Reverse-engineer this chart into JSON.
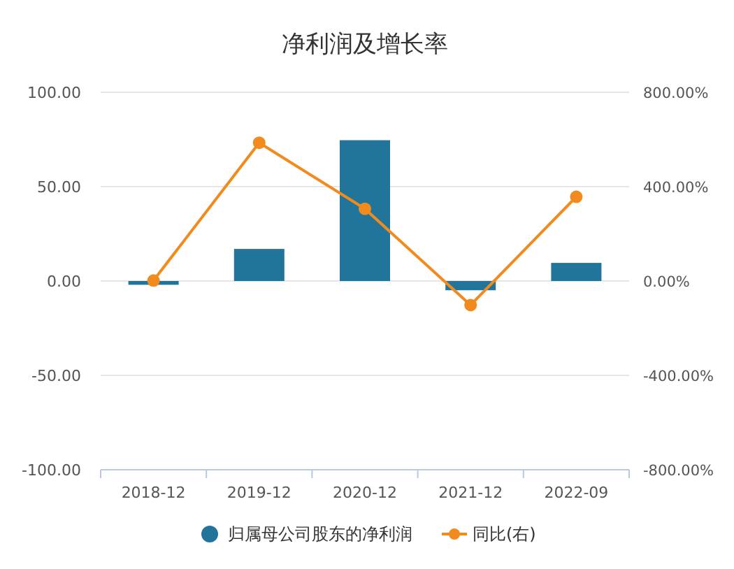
{
  "chart_data": {
    "type": "bar",
    "title": "净利润及增长率",
    "categories": [
      "2018-12",
      "2019-12",
      "2020-12",
      "2021-12",
      "2022-09"
    ],
    "series": [
      {
        "name": "归属母公司股东的净利润",
        "color": "#21759b",
        "values": [
          -2,
          17,
          74.6,
          -4.9,
          9.6
        ]
      },
      {
        "name": "同比(右)",
        "type": "line",
        "axis": "y2",
        "color": "#f28b1e",
        "marker": "circle",
        "values": [
          2,
          586,
          306,
          -102,
          357
        ]
      }
    ],
    "ylim": [
      -100,
      100
    ],
    "yticks": [
      {
        "value": -100,
        "label": "-100.00"
      },
      {
        "value": -50,
        "label": "-50.00"
      },
      {
        "value": 0,
        "label": "0.00"
      },
      {
        "value": 50,
        "label": "50.00"
      },
      {
        "value": 100,
        "label": "100.00"
      }
    ],
    "y2lim": [
      -800,
      800
    ],
    "y2ticks": [
      {
        "value": -800,
        "label": "-800.00%"
      },
      {
        "value": -400,
        "label": "-400.00%"
      },
      {
        "value": 0,
        "label": "0.00%"
      },
      {
        "value": 400,
        "label": "400.00%"
      },
      {
        "value": 800,
        "label": "800.00%"
      }
    ],
    "grid": "y",
    "legend": "bottom"
  }
}
